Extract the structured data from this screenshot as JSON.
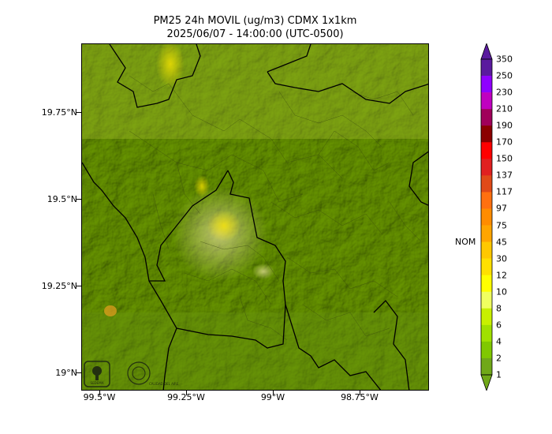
{
  "title": {
    "line1": "PM25 24h MOVIL (ug/m3) CDMX 1x1km",
    "line2": "2025/06/07 - 14:00:00 (UTC-0500)"
  },
  "axes": {
    "y_ticks": [
      "19.75°N",
      "19.5°N",
      "19.25°N",
      "19°N"
    ],
    "x_ticks": [
      "99.5°W",
      "99.25°W",
      "99°W",
      "98.75°W"
    ]
  },
  "colorbar": {
    "levels": [
      "350",
      "250",
      "230",
      "210",
      "190",
      "170",
      "150",
      "137",
      "117",
      "97",
      "75",
      "45",
      "30",
      "12",
      "10",
      "8",
      "6",
      "4",
      "2",
      "1"
    ],
    "colors": [
      "#5a1a9e",
      "#8f00ff",
      "#c000c0",
      "#a0005a",
      "#8b0000",
      "#ff0000",
      "#e02020",
      "#e04a18",
      "#ff7010",
      "#ff8c00",
      "#ffa500",
      "#ffc800",
      "#ffe000",
      "#ffff00",
      "#f0ff60",
      "#c8f000",
      "#a0e000",
      "#80c800",
      "#70a818"
    ],
    "marker_label": "NOM"
  },
  "logos": {
    "left": "SEDEMA",
    "right": "CALIDAD DEL AIRE"
  }
}
